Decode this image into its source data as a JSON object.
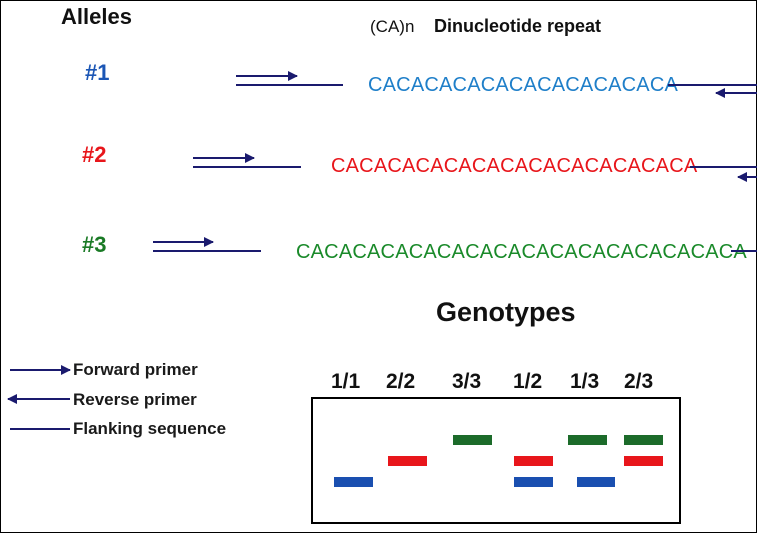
{
  "header": {
    "alleles_title": "Alleles",
    "repeat_prefix": "(CA)n",
    "repeat_title": "Dinucleotide repeat"
  },
  "alleles": [
    {
      "label": "#1",
      "sequence": "CACACACACACACACACACACA",
      "color": "#1f7fc9",
      "label_color": "#1b56b5"
    },
    {
      "label": "#2",
      "sequence": "CACACACACACACACACACACACACA",
      "color": "#e8161b",
      "label_color": "#e8161b"
    },
    {
      "label": "#3",
      "sequence": "CACACACACACACACACACACACACACACACA",
      "color": "#1a8a2a",
      "label_color": "#1a7a25"
    }
  ],
  "legend": {
    "forward": "Forward primer",
    "reverse": "Reverse primer",
    "flanking": "Flanking sequence"
  },
  "genotypes": {
    "title": "Genotypes",
    "labels": [
      "1/1",
      "2/2",
      "3/3",
      "1/2",
      "1/3",
      "2/3"
    ]
  },
  "colors": {
    "line": "#1a1a6e",
    "band1": "#1a4fb0",
    "band2": "#e8161b",
    "band3": "#1c6b2a"
  }
}
